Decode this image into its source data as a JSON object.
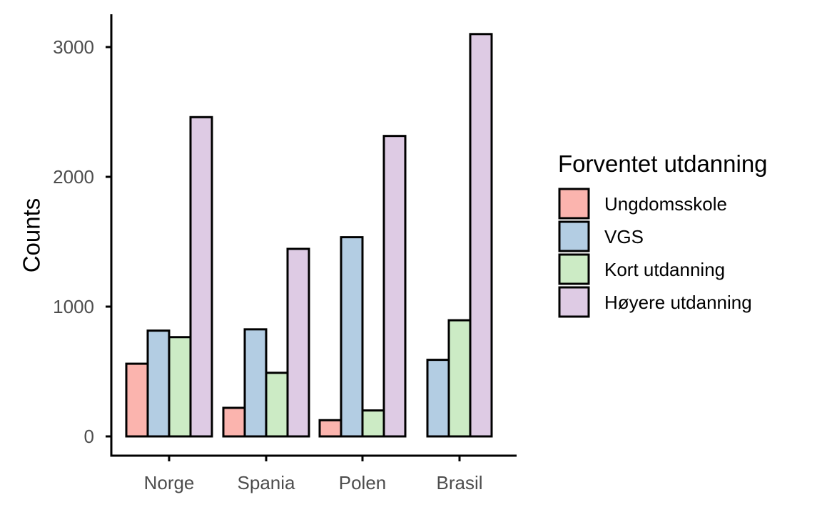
{
  "chart_data": {
    "type": "bar",
    "title": "",
    "xlabel": "",
    "ylabel": "Counts",
    "categories": [
      "Norge",
      "Spania",
      "Polen",
      "Brasil"
    ],
    "yticks": [
      0,
      1000,
      2000,
      3000
    ],
    "ylim": [
      -150,
      3260
    ],
    "grid": false,
    "legend": {
      "title": "Forventet utdanning",
      "placement": "right"
    },
    "series": [
      {
        "name": "Ungdomsskole",
        "color": "#fbb4ae",
        "values": [
          560,
          220,
          125,
          null
        ]
      },
      {
        "name": "VGS",
        "color": "#b3cde3",
        "values": [
          815,
          825,
          1535,
          590
        ]
      },
      {
        "name": "Kort utdanning",
        "color": "#ccebc5",
        "values": [
          765,
          490,
          200,
          895
        ]
      },
      {
        "name": "Høyere utdanning",
        "color": "#decbe4",
        "values": [
          2460,
          1445,
          2315,
          3100
        ]
      }
    ]
  }
}
